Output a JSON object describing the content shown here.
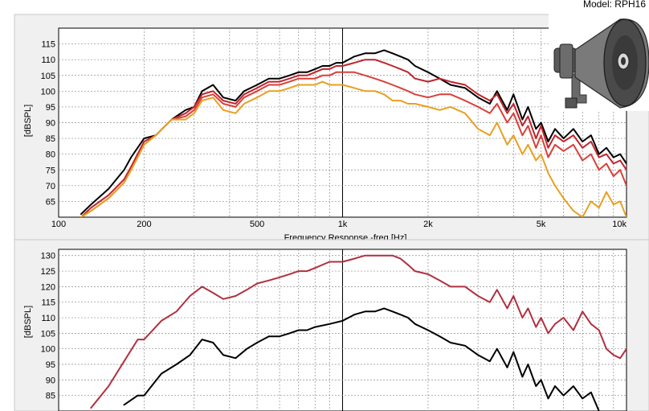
{
  "model_label": "Model: RPH16",
  "colors": {
    "black": "#000000",
    "crimson": "#c0242c",
    "red_orange": "#d8403a",
    "orange": "#e8a020",
    "maroon": "#b03040",
    "grid": "#8c8c8c"
  },
  "chart_data": [
    {
      "type": "line",
      "title": "",
      "xlabel": "Frequency Response -freq [Hz]",
      "ylabel": "[dBSPL]",
      "xscale": "log",
      "xlim": [
        100,
        10000
      ],
      "ylim": [
        60,
        120
      ],
      "yticks": [
        65,
        70,
        75,
        80,
        85,
        90,
        95,
        100,
        105,
        110,
        115
      ],
      "xtick_labels": [
        {
          "value": 100,
          "label": "100"
        },
        {
          "value": 200,
          "label": "200"
        },
        {
          "value": 500,
          "label": "500"
        },
        {
          "value": 1000,
          "label": "1k"
        },
        {
          "value": 2000,
          "label": "2k"
        },
        {
          "value": 5000,
          "label": "5k"
        },
        {
          "value": 10000,
          "label": "10k"
        }
      ],
      "grid": true,
      "series": [
        {
          "color": "#000000",
          "x": [
            120,
            130,
            150,
            170,
            180,
            200,
            220,
            250,
            280,
            300,
            320,
            350,
            380,
            420,
            450,
            500,
            550,
            600,
            650,
            700,
            750,
            800,
            850,
            900,
            950,
            1000,
            1100,
            1200,
            1300,
            1400,
            1500,
            1600,
            1700,
            1800,
            2000,
            2200,
            2400,
            2700,
            3000,
            3300,
            3500,
            3800,
            4000,
            4300,
            4500,
            4800,
            5000,
            5300,
            5600,
            6000,
            6500,
            7000,
            7500,
            8000,
            8500,
            9000,
            9500,
            10000
          ],
          "y": [
            61,
            64,
            69,
            75,
            79,
            85,
            86,
            91,
            94,
            95,
            100,
            102,
            98,
            97,
            100,
            102,
            104,
            104,
            105,
            106,
            106,
            107,
            108,
            108,
            109,
            109,
            111,
            112,
            112,
            113,
            112,
            111,
            110,
            108,
            106,
            104,
            102,
            101,
            98,
            96,
            100,
            94,
            99,
            91,
            95,
            88,
            90,
            84,
            88,
            85,
            88,
            84,
            86,
            80,
            82,
            79,
            80,
            77
          ]
        },
        {
          "color": "#c0242c",
          "x": [
            120,
            130,
            150,
            170,
            180,
            200,
            220,
            250,
            280,
            300,
            320,
            350,
            380,
            420,
            450,
            500,
            550,
            600,
            650,
            700,
            750,
            800,
            850,
            900,
            950,
            1000,
            1100,
            1200,
            1300,
            1400,
            1500,
            1600,
            1700,
            1800,
            2000,
            2200,
            2400,
            2700,
            3000,
            3300,
            3500,
            3800,
            4000,
            4300,
            4500,
            4800,
            5000,
            5300,
            5600,
            6000,
            6500,
            7000,
            7500,
            8000,
            8500,
            9000,
            9500,
            10000
          ],
          "y": [
            60,
            63,
            67,
            72,
            76,
            84,
            86,
            91,
            93,
            95,
            99,
            100,
            97,
            96,
            99,
            101,
            103,
            103,
            104,
            105,
            105,
            106,
            107,
            107,
            108,
            108,
            109,
            110,
            110,
            109,
            108,
            107,
            106,
            104,
            103,
            104,
            103,
            102,
            99,
            97,
            99,
            93,
            96,
            89,
            92,
            85,
            89,
            82,
            86,
            84,
            86,
            82,
            84,
            79,
            80,
            77,
            78,
            75
          ]
        },
        {
          "color": "#d8403a",
          "x": [
            120,
            130,
            150,
            170,
            180,
            200,
            220,
            250,
            280,
            300,
            320,
            350,
            380,
            420,
            450,
            500,
            550,
            600,
            650,
            700,
            750,
            800,
            850,
            900,
            950,
            1000,
            1100,
            1200,
            1300,
            1400,
            1500,
            1600,
            1700,
            1800,
            2000,
            2200,
            2400,
            2700,
            3000,
            3300,
            3500,
            3800,
            4000,
            4300,
            4500,
            4800,
            5000,
            5300,
            5600,
            6000,
            6500,
            7000,
            7500,
            8000,
            8500,
            9000,
            9500,
            10000
          ],
          "y": [
            60,
            62,
            66,
            71,
            75,
            83,
            86,
            91,
            92,
            94,
            98,
            99,
            96,
            95,
            98,
            100,
            102,
            102,
            103,
            104,
            104,
            104,
            105,
            105,
            106,
            106,
            106,
            105,
            104,
            103,
            102,
            101,
            100,
            99,
            98,
            99,
            99,
            97,
            95,
            93,
            96,
            90,
            93,
            86,
            89,
            82,
            86,
            79,
            83,
            81,
            83,
            78,
            80,
            75,
            77,
            73,
            75,
            70
          ]
        },
        {
          "color": "#e8a020",
          "x": [
            120,
            130,
            150,
            170,
            180,
            200,
            220,
            250,
            280,
            300,
            320,
            350,
            380,
            420,
            450,
            500,
            550,
            600,
            650,
            700,
            750,
            800,
            850,
            900,
            950,
            1000,
            1100,
            1200,
            1300,
            1400,
            1500,
            1600,
            1700,
            1800,
            2000,
            2200,
            2400,
            2700,
            3000,
            3300,
            3500,
            3800,
            4000,
            4300,
            4500,
            4800,
            5000,
            5300,
            5600,
            6000,
            6500,
            7000,
            7500,
            8000,
            8500,
            9000,
            9500,
            10000
          ],
          "y": [
            60,
            62,
            66,
            71,
            75,
            83,
            86,
            91,
            91,
            93,
            97,
            98,
            94,
            93,
            96,
            98,
            100,
            100,
            101,
            102,
            102,
            102,
            103,
            102,
            102,
            102,
            101,
            100,
            100,
            99,
            97,
            97,
            96,
            96,
            95,
            94,
            95,
            93,
            88,
            86,
            90,
            83,
            86,
            80,
            83,
            78,
            80,
            74,
            70,
            66,
            62,
            60,
            65,
            63,
            68,
            64,
            65,
            60
          ]
        }
      ]
    },
    {
      "type": "line",
      "title": "",
      "xlabel": "",
      "ylabel": "[dBSPL]",
      "xscale": "log",
      "xlim": [
        100,
        10000
      ],
      "ylim": [
        80,
        132
      ],
      "yticks": [
        85,
        90,
        95,
        100,
        105,
        110,
        115,
        120,
        125,
        130
      ],
      "grid": true,
      "series": [
        {
          "color": "#b03040",
          "x": [
            130,
            150,
            170,
            190,
            200,
            230,
            260,
            290,
            320,
            350,
            380,
            420,
            460,
            500,
            550,
            600,
            650,
            700,
            750,
            800,
            900,
            1000,
            1100,
            1200,
            1300,
            1400,
            1500,
            1600,
            1700,
            1800,
            2000,
            2200,
            2400,
            2700,
            3000,
            3300,
            3500,
            3800,
            4000,
            4300,
            4500,
            4800,
            5000,
            5300,
            5600,
            6000,
            6500,
            7000,
            7500,
            8000,
            8500,
            9000,
            9500,
            10000
          ],
          "y": [
            81,
            88,
            96,
            103,
            103,
            109,
            112,
            117,
            120,
            118,
            116,
            117,
            119,
            121,
            122,
            123,
            124,
            125,
            125,
            126,
            128,
            128,
            129,
            130,
            130,
            130,
            130,
            129,
            127,
            125,
            124,
            122,
            120,
            120,
            117,
            115,
            119,
            113,
            117,
            110,
            113,
            107,
            110,
            105,
            108,
            110,
            106,
            112,
            108,
            106,
            100,
            98,
            97,
            100
          ]
        },
        {
          "color": "#000000",
          "x": [
            170,
            190,
            200,
            230,
            260,
            290,
            320,
            350,
            380,
            420,
            460,
            500,
            550,
            600,
            650,
            700,
            750,
            800,
            900,
            1000,
            1100,
            1200,
            1300,
            1400,
            1500,
            1600,
            1700,
            1800,
            2000,
            2200,
            2400,
            2700,
            3000,
            3300,
            3500,
            3800,
            4000,
            4300,
            4500,
            4800,
            5000,
            5300,
            5600,
            6000,
            6500,
            7000,
            7500,
            8000
          ],
          "y": [
            82,
            85,
            85,
            92,
            95,
            98,
            103,
            102,
            98,
            97,
            100,
            102,
            104,
            104,
            105,
            106,
            106,
            107,
            108,
            109,
            111,
            112,
            112,
            113,
            112,
            111,
            110,
            108,
            106,
            104,
            102,
            101,
            98,
            96,
            100,
            94,
            99,
            91,
            95,
            88,
            90,
            84,
            88,
            85,
            88,
            84,
            86,
            80
          ]
        }
      ]
    }
  ]
}
